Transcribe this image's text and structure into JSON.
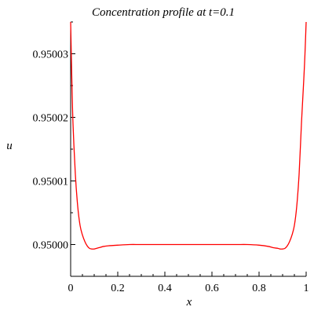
{
  "chart_data": {
    "type": "line",
    "title": "Concentration profile at t=0.1",
    "xlabel": "x",
    "ylabel": "u",
    "xlim": [
      0,
      1
    ],
    "ylim": [
      0.949995,
      0.950035
    ],
    "x_ticks": [
      0,
      0.2,
      0.4,
      0.6,
      0.8,
      1
    ],
    "x_tick_labels": [
      "0",
      "0.2",
      "0.4",
      "0.6",
      "0.8",
      "1"
    ],
    "y_ticks": [
      0.95,
      0.95001,
      0.95002,
      0.95003
    ],
    "y_tick_labels": [
      "0.95000",
      "0.95001",
      "0.95002",
      "0.95003"
    ],
    "grid": false,
    "series": [
      {
        "color": "#ff0000",
        "x": [
          0,
          0.005,
          0.01,
          0.02,
          0.03,
          0.04,
          0.05,
          0.06,
          0.07,
          0.08,
          0.09,
          0.1,
          0.11,
          0.12,
          0.14,
          0.16,
          0.2,
          0.25,
          0.3,
          0.4,
          0.5,
          0.6,
          0.7,
          0.75,
          0.8,
          0.84,
          0.86,
          0.88,
          0.89,
          0.9,
          0.91,
          0.92,
          0.93,
          0.94,
          0.95,
          0.96,
          0.97,
          0.98,
          0.99,
          0.995,
          1
        ],
        "y": [
          0.950035,
          0.950026,
          0.950019,
          0.950011,
          0.950006,
          0.950003,
          0.9500015,
          0.9500005,
          0.9499998,
          0.9499994,
          0.9499993,
          0.9499993,
          0.9499994,
          0.9499995,
          0.9499997,
          0.9499998,
          0.9499999,
          0.95,
          0.95,
          0.95,
          0.95,
          0.95,
          0.95,
          0.95,
          0.9499999,
          0.9499997,
          0.9499995,
          0.9499994,
          0.9499993,
          0.9499993,
          0.9499994,
          0.9499998,
          0.9500005,
          0.9500015,
          0.950003,
          0.950006,
          0.950011,
          0.950019,
          0.950026,
          0.95003,
          0.950035
        ]
      }
    ]
  }
}
